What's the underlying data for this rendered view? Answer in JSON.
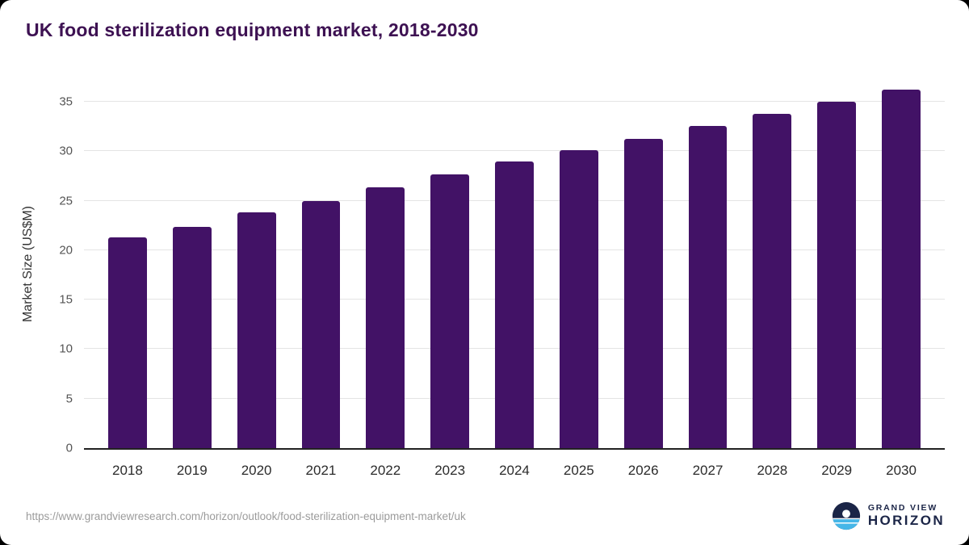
{
  "title": "UK food sterilization equipment market, 2018-2030",
  "chart_data": {
    "type": "bar",
    "title": "UK food sterilization equipment market, 2018-2030",
    "xlabel": "",
    "ylabel": "Market Size (US$M)",
    "categories": [
      "2018",
      "2019",
      "2020",
      "2021",
      "2022",
      "2023",
      "2024",
      "2025",
      "2026",
      "2027",
      "2028",
      "2029",
      "2030"
    ],
    "values": [
      21.3,
      22.4,
      23.8,
      25.0,
      26.4,
      27.7,
      29.0,
      30.1,
      31.3,
      32.6,
      33.8,
      35.0,
      36.2
    ],
    "yticks": [
      0,
      5,
      10,
      15,
      20,
      25,
      30,
      35
    ],
    "ylim": [
      0,
      37.3
    ],
    "grid": true,
    "legend_position": "none",
    "bar_color": "#421266"
  },
  "footer": {
    "source_url": "https://www.grandviewresearch.com/horizon/outlook/food-sterilization-equipment-market/uk",
    "logo_line1": "GRAND VIEW",
    "logo_line2": "HORIZON"
  },
  "colors": {
    "title_text": "#3d1152",
    "bar": "#421266",
    "logo_navy": "#1b2547",
    "logo_blue": "#45b6e8",
    "gridline": "#e4e4e4"
  }
}
